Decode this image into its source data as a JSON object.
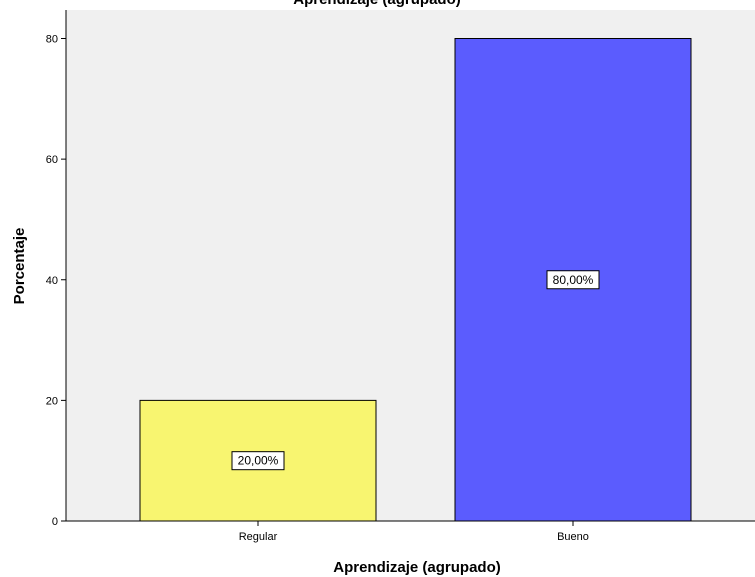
{
  "chart_data": {
    "type": "bar",
    "title": "Aprendizaje (agrupado)",
    "xlabel": "Aprendizaje (agrupado)",
    "ylabel": "Porcentaje",
    "categories": [
      "Regular",
      "Bueno"
    ],
    "values": [
      20,
      80
    ],
    "data_labels": [
      "20,00%",
      "80,00%"
    ],
    "colors": [
      "#f8f570",
      "#5b5cfe"
    ],
    "plot_background": "#f0f0f0",
    "ylim": [
      0,
      84
    ],
    "yticks": [
      0,
      20,
      40,
      60,
      80
    ],
    "ytick_labels": [
      "0",
      "20",
      "40",
      "60",
      "80"
    ],
    "grid": false,
    "legend": "none"
  }
}
